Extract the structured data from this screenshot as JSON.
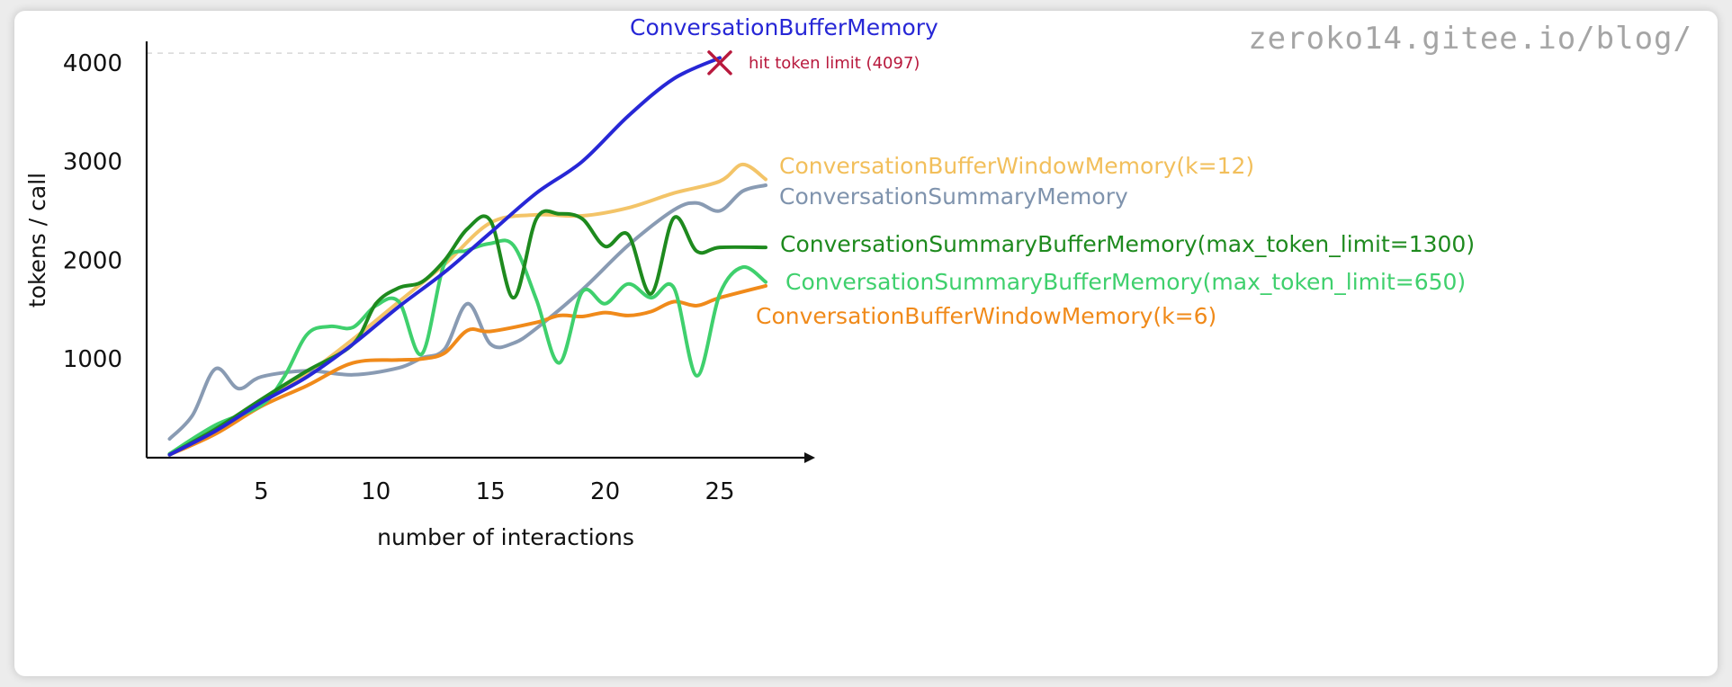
{
  "watermark": "zeroko14.gitee.io/blog/",
  "chart_data": {
    "type": "line",
    "title": "",
    "xlabel": "number of interactions",
    "ylabel": "tokens / call",
    "xlim": [
      0,
      29
    ],
    "ylim": [
      0,
      4300
    ],
    "x_ticks": [
      5,
      10,
      15,
      20,
      25
    ],
    "y_ticks": [
      1000,
      2000,
      3000,
      4000
    ],
    "grid": false,
    "legend": "none (series labeled at line ends, right)",
    "reference_line": {
      "y": 4097,
      "style": "dashed"
    },
    "annotations": [
      {
        "text": "hit token limit (4097)",
        "x": 25,
        "y": 4000,
        "marker": "x",
        "color": "#b8193d"
      }
    ],
    "series": [
      {
        "name": "ConversationBufferMemory",
        "color": "#2727d6",
        "x": [
          1,
          3,
          5,
          7,
          9,
          11,
          13,
          15,
          17,
          19,
          21,
          23,
          25
        ],
        "y": [
          30,
          270,
          560,
          820,
          1150,
          1530,
          1880,
          2280,
          2680,
          3000,
          3460,
          3840,
          4050
        ]
      },
      {
        "name": "ConversationBufferWindowMemory(k=12)",
        "color": "#f2bf5b",
        "x": [
          1,
          3,
          5,
          7,
          9,
          11,
          13,
          15,
          17,
          19,
          21,
          23,
          25,
          26,
          27
        ],
        "y": [
          30,
          280,
          560,
          850,
          1200,
          1580,
          1960,
          2380,
          2460,
          2450,
          2530,
          2680,
          2800,
          2970,
          2820
        ]
      },
      {
        "name": "ConversationSummaryMemory",
        "color": "#7f93ad",
        "x": [
          1,
          2,
          3,
          4,
          5,
          7,
          9,
          11,
          12,
          13,
          14,
          15,
          16,
          17,
          19,
          21,
          23,
          24,
          25,
          26,
          27
        ],
        "y": [
          190,
          430,
          900,
          700,
          820,
          880,
          840,
          910,
          1010,
          1100,
          1560,
          1150,
          1160,
          1310,
          1700,
          2150,
          2510,
          2580,
          2500,
          2700,
          2760
        ]
      },
      {
        "name": "ConversationSummaryBufferMemory(max_token_limit=1300)",
        "color": "#1e8a1e",
        "x": [
          1,
          3,
          5,
          7,
          9,
          10,
          11,
          12,
          13,
          14,
          15,
          16,
          17,
          18,
          19,
          20,
          21,
          22,
          23,
          24,
          25,
          27
        ],
        "y": [
          30,
          290,
          590,
          880,
          1150,
          1560,
          1720,
          1780,
          2000,
          2320,
          2400,
          1620,
          2420,
          2470,
          2420,
          2140,
          2260,
          1660,
          2430,
          2090,
          2130,
          2130
        ]
      },
      {
        "name": "ConversationSummaryBufferMemory(max_token_limit=650)",
        "color": "#3fd06d",
        "x": [
          1,
          3,
          5,
          6,
          7,
          8,
          9,
          10,
          11,
          12,
          13,
          14,
          15,
          16,
          17,
          18,
          19,
          20,
          21,
          22,
          23,
          24,
          25,
          26,
          27
        ],
        "y": [
          40,
          330,
          530,
          820,
          1250,
          1330,
          1320,
          1540,
          1580,
          1050,
          1970,
          2100,
          2170,
          2150,
          1600,
          960,
          1680,
          1560,
          1760,
          1620,
          1720,
          830,
          1660,
          1930,
          1780
        ]
      },
      {
        "name": "ConversationBufferWindowMemory(k=6)",
        "color": "#f08a1a",
        "x": [
          1,
          3,
          5,
          7,
          9,
          11,
          12,
          13,
          14,
          15,
          17,
          18,
          19,
          20,
          21,
          22,
          23,
          24,
          25,
          27
        ],
        "y": [
          30,
          240,
          520,
          730,
          960,
          990,
          1000,
          1060,
          1290,
          1280,
          1370,
          1440,
          1430,
          1470,
          1440,
          1480,
          1580,
          1540,
          1620,
          1740
        ]
      }
    ]
  }
}
